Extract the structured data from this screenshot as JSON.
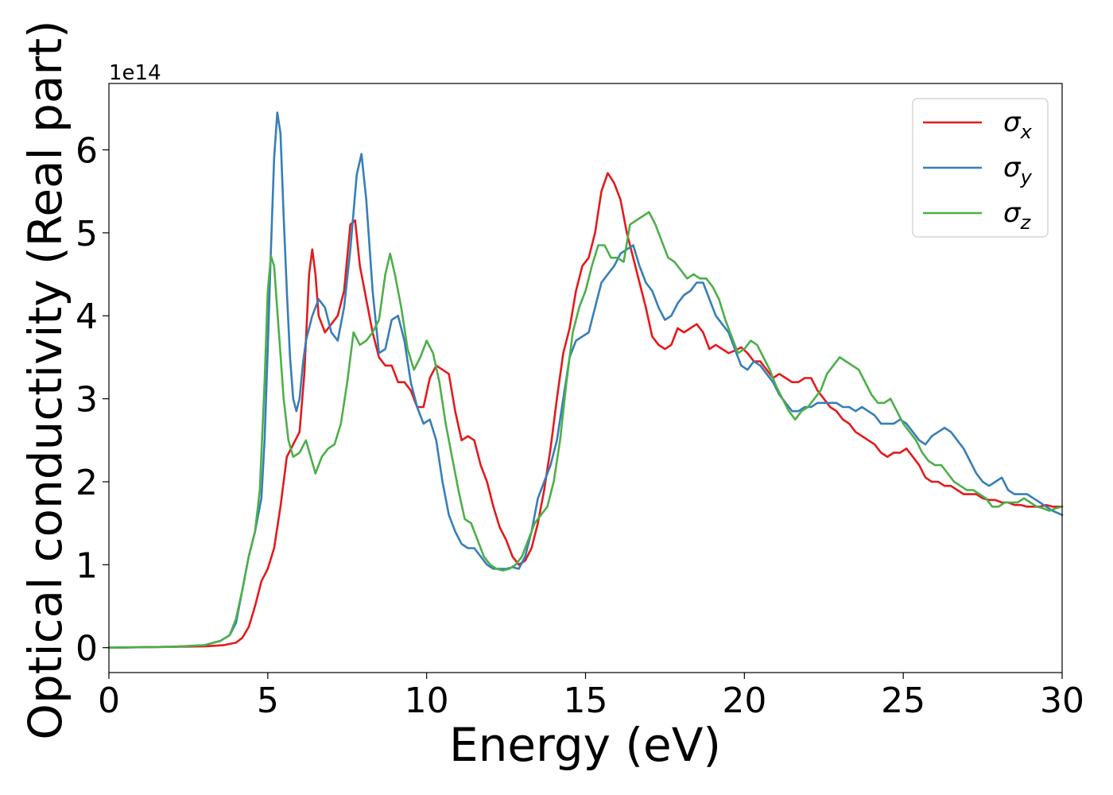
{
  "chart_data": {
    "type": "line",
    "xlabel": "Energy (eV)",
    "ylabel": "Optical conductivity (Real part)",
    "y_offset_label": "1e14",
    "xlim": [
      0,
      30
    ],
    "ylim": [
      -0.3,
      6.8
    ],
    "x_ticks": [
      0,
      5,
      10,
      15,
      20,
      25,
      30
    ],
    "x_tick_labels": [
      "0",
      "5",
      "10",
      "15",
      "20",
      "25",
      "30"
    ],
    "y_ticks": [
      0,
      1,
      2,
      3,
      4,
      5,
      6
    ],
    "y_tick_labels": [
      "0",
      "1",
      "2",
      "3",
      "4",
      "5",
      "6"
    ],
    "grid": false,
    "legend_position": "top-right",
    "series": [
      {
        "name": "σx",
        "legend_symbol": "σ",
        "legend_subscript": "x",
        "color": "#e41a1c",
        "x": [
          0,
          2,
          3,
          3.6,
          4,
          4.2,
          4.4,
          4.6,
          4.8,
          5.0,
          5.2,
          5.4,
          5.6,
          5.8,
          6.0,
          6.15,
          6.3,
          6.4,
          6.5,
          6.6,
          6.8,
          7.0,
          7.2,
          7.4,
          7.6,
          7.75,
          7.9,
          8.1,
          8.3,
          8.5,
          8.7,
          8.9,
          9.1,
          9.3,
          9.5,
          9.7,
          9.9,
          10.1,
          10.3,
          10.5,
          10.7,
          10.9,
          11.1,
          11.3,
          11.5,
          11.7,
          11.9,
          12.1,
          12.3,
          12.5,
          12.7,
          12.9,
          13.1,
          13.3,
          13.5,
          13.7,
          13.9,
          14.1,
          14.3,
          14.5,
          14.7,
          14.9,
          15.1,
          15.3,
          15.5,
          15.7,
          15.9,
          16.1,
          16.3,
          16.5,
          16.7,
          16.9,
          17.1,
          17.3,
          17.5,
          17.7,
          17.9,
          18.1,
          18.3,
          18.5,
          18.7,
          18.9,
          19.1,
          19.3,
          19.5,
          19.7,
          19.9,
          20.1,
          20.3,
          20.5,
          20.7,
          20.9,
          21.1,
          21.3,
          21.5,
          21.7,
          21.9,
          22.1,
          22.3,
          22.5,
          22.7,
          22.9,
          23.1,
          23.3,
          23.5,
          23.7,
          23.9,
          24.1,
          24.3,
          24.5,
          24.7,
          24.9,
          25.1,
          25.3,
          25.5,
          25.7,
          25.9,
          26.1,
          26.3,
          26.5,
          26.7,
          26.9,
          27.1,
          27.3,
          27.5,
          27.7,
          27.9,
          28.1,
          28.3,
          28.5,
          28.7,
          28.9,
          29.1,
          29.3,
          29.5,
          29.7,
          30.0
        ],
        "y": [
          0.0,
          0.01,
          0.015,
          0.03,
          0.06,
          0.12,
          0.25,
          0.5,
          0.8,
          0.95,
          1.2,
          1.7,
          2.3,
          2.45,
          2.6,
          3.3,
          4.5,
          4.8,
          4.5,
          4.0,
          3.8,
          3.9,
          4.0,
          4.3,
          5.1,
          5.15,
          4.6,
          4.2,
          3.8,
          3.5,
          3.4,
          3.4,
          3.2,
          3.2,
          3.1,
          2.9,
          2.9,
          3.25,
          3.4,
          3.35,
          3.3,
          2.85,
          2.5,
          2.55,
          2.5,
          2.2,
          2.0,
          1.7,
          1.45,
          1.3,
          1.1,
          1.0,
          1.05,
          1.2,
          1.5,
          1.9,
          2.4,
          3.0,
          3.55,
          3.85,
          4.3,
          4.6,
          4.7,
          5.0,
          5.5,
          5.72,
          5.6,
          5.4,
          5.0,
          4.7,
          4.4,
          4.1,
          3.75,
          3.65,
          3.6,
          3.65,
          3.85,
          3.8,
          3.85,
          3.9,
          3.8,
          3.6,
          3.65,
          3.6,
          3.55,
          3.58,
          3.62,
          3.55,
          3.45,
          3.45,
          3.35,
          3.25,
          3.3,
          3.25,
          3.2,
          3.2,
          3.25,
          3.25,
          3.1,
          3.0,
          2.9,
          2.85,
          2.75,
          2.7,
          2.6,
          2.55,
          2.5,
          2.45,
          2.35,
          2.3,
          2.35,
          2.35,
          2.4,
          2.3,
          2.2,
          2.05,
          2.0,
          2.0,
          1.95,
          1.95,
          1.9,
          1.85,
          1.85,
          1.85,
          1.8,
          1.78,
          1.78,
          1.75,
          1.75,
          1.72,
          1.72,
          1.7,
          1.7,
          1.7,
          1.72,
          1.7,
          1.7
        ]
      },
      {
        "name": "σy",
        "legend_symbol": "σ",
        "legend_subscript": "y",
        "color": "#377eb8",
        "x": [
          0,
          2,
          3,
          3.5,
          3.8,
          4.0,
          4.2,
          4.4,
          4.6,
          4.8,
          4.9,
          5.0,
          5.1,
          5.2,
          5.3,
          5.4,
          5.5,
          5.6,
          5.7,
          5.8,
          5.9,
          6.0,
          6.1,
          6.2,
          6.4,
          6.6,
          6.8,
          7.0,
          7.2,
          7.4,
          7.6,
          7.8,
          7.95,
          8.1,
          8.3,
          8.5,
          8.7,
          8.9,
          9.1,
          9.3,
          9.5,
          9.7,
          9.9,
          10.1,
          10.3,
          10.5,
          10.7,
          10.9,
          11.1,
          11.3,
          11.5,
          11.7,
          11.9,
          12.1,
          12.3,
          12.5,
          12.7,
          12.9,
          13.1,
          13.3,
          13.5,
          13.7,
          13.9,
          14.1,
          14.3,
          14.5,
          14.7,
          14.9,
          15.1,
          15.3,
          15.5,
          15.7,
          15.9,
          16.1,
          16.3,
          16.5,
          16.7,
          16.9,
          17.1,
          17.3,
          17.5,
          17.7,
          17.9,
          18.1,
          18.3,
          18.5,
          18.7,
          18.9,
          19.1,
          19.3,
          19.5,
          19.7,
          19.9,
          20.1,
          20.3,
          20.5,
          20.7,
          20.9,
          21.1,
          21.3,
          21.5,
          21.7,
          21.9,
          22.1,
          22.3,
          22.5,
          22.7,
          22.9,
          23.1,
          23.3,
          23.5,
          23.7,
          23.9,
          24.1,
          24.3,
          24.5,
          24.7,
          24.9,
          25.1,
          25.3,
          25.5,
          25.7,
          25.9,
          26.1,
          26.3,
          26.5,
          26.7,
          26.9,
          27.1,
          27.3,
          27.5,
          27.7,
          27.9,
          28.1,
          28.3,
          28.5,
          28.7,
          28.9,
          29.1,
          29.3,
          29.5,
          29.7,
          30.0
        ],
        "y": [
          0.0,
          0.01,
          0.03,
          0.08,
          0.15,
          0.3,
          0.7,
          1.1,
          1.4,
          1.8,
          2.5,
          3.6,
          4.8,
          5.9,
          6.45,
          6.2,
          5.2,
          4.3,
          3.5,
          3.0,
          2.85,
          3.0,
          3.4,
          3.7,
          4.0,
          4.2,
          4.1,
          3.8,
          3.7,
          4.1,
          4.8,
          5.7,
          5.95,
          5.4,
          4.3,
          3.55,
          3.6,
          3.95,
          4.0,
          3.7,
          3.2,
          2.9,
          2.7,
          2.75,
          2.5,
          2.0,
          1.6,
          1.4,
          1.25,
          1.2,
          1.2,
          1.1,
          1.0,
          0.95,
          0.95,
          0.95,
          0.97,
          0.95,
          1.1,
          1.4,
          1.8,
          2.0,
          2.2,
          2.5,
          3.0,
          3.5,
          3.7,
          3.75,
          3.8,
          4.1,
          4.4,
          4.5,
          4.6,
          4.75,
          4.8,
          4.85,
          4.6,
          4.4,
          4.3,
          4.1,
          3.95,
          4.0,
          4.15,
          4.25,
          4.3,
          4.4,
          4.4,
          4.2,
          4.0,
          3.9,
          3.8,
          3.6,
          3.4,
          3.35,
          3.45,
          3.4,
          3.3,
          3.2,
          3.05,
          2.95,
          2.85,
          2.85,
          2.9,
          2.9,
          2.95,
          2.95,
          2.95,
          2.95,
          2.9,
          2.9,
          2.85,
          2.9,
          2.85,
          2.8,
          2.7,
          2.7,
          2.7,
          2.75,
          2.7,
          2.6,
          2.5,
          2.45,
          2.55,
          2.6,
          2.65,
          2.6,
          2.5,
          2.4,
          2.25,
          2.1,
          2.0,
          1.95,
          2.0,
          2.05,
          1.9,
          1.85,
          1.85,
          1.85,
          1.8,
          1.75,
          1.7,
          1.65,
          1.6
        ]
      },
      {
        "name": "σz",
        "legend_symbol": "σ",
        "legend_subscript": "z",
        "color": "#4daf4a",
        "x": [
          0,
          2,
          3,
          3.5,
          3.8,
          4.0,
          4.2,
          4.4,
          4.6,
          4.75,
          4.9,
          5.0,
          5.1,
          5.2,
          5.35,
          5.5,
          5.65,
          5.8,
          6.0,
          6.2,
          6.35,
          6.5,
          6.7,
          6.9,
          7.1,
          7.3,
          7.5,
          7.7,
          7.9,
          8.1,
          8.3,
          8.5,
          8.7,
          8.85,
          9.0,
          9.2,
          9.4,
          9.6,
          9.8,
          10.0,
          10.2,
          10.4,
          10.6,
          10.8,
          11.0,
          11.2,
          11.4,
          11.6,
          11.8,
          12.0,
          12.2,
          12.4,
          12.6,
          12.8,
          13.0,
          13.2,
          13.4,
          13.6,
          13.8,
          14.0,
          14.2,
          14.4,
          14.6,
          14.8,
          15.0,
          15.2,
          15.4,
          15.6,
          15.8,
          16.0,
          16.2,
          16.4,
          16.6,
          16.8,
          17.0,
          17.2,
          17.4,
          17.6,
          17.8,
          18.0,
          18.2,
          18.4,
          18.6,
          18.8,
          19.0,
          19.2,
          19.4,
          19.6,
          19.8,
          20.0,
          20.2,
          20.4,
          20.6,
          20.8,
          21.0,
          21.2,
          21.4,
          21.6,
          21.8,
          22.0,
          22.2,
          22.4,
          22.6,
          22.8,
          23.0,
          23.2,
          23.4,
          23.6,
          23.8,
          24.0,
          24.2,
          24.4,
          24.6,
          24.8,
          25.0,
          25.2,
          25.4,
          25.6,
          25.8,
          26.0,
          26.2,
          26.4,
          26.6,
          26.8,
          27.0,
          27.2,
          27.4,
          27.6,
          27.8,
          28.0,
          28.2,
          28.4,
          28.6,
          28.8,
          29.0,
          29.2,
          29.4,
          29.6,
          29.8,
          30.0
        ],
        "y": [
          0.0,
          0.01,
          0.03,
          0.08,
          0.15,
          0.35,
          0.7,
          1.1,
          1.4,
          1.9,
          3.2,
          4.3,
          4.72,
          4.6,
          3.8,
          3.0,
          2.5,
          2.3,
          2.35,
          2.5,
          2.3,
          2.1,
          2.3,
          2.4,
          2.45,
          2.7,
          3.2,
          3.8,
          3.65,
          3.7,
          3.8,
          3.95,
          4.5,
          4.75,
          4.5,
          4.1,
          3.6,
          3.35,
          3.5,
          3.7,
          3.55,
          3.2,
          2.7,
          2.3,
          1.9,
          1.55,
          1.5,
          1.3,
          1.1,
          1.0,
          0.95,
          0.93,
          0.95,
          1.0,
          1.1,
          1.3,
          1.5,
          1.6,
          1.7,
          2.0,
          2.5,
          3.2,
          3.8,
          4.1,
          4.3,
          4.6,
          4.85,
          4.85,
          4.7,
          4.7,
          4.65,
          5.1,
          5.15,
          5.2,
          5.25,
          5.1,
          4.9,
          4.7,
          4.65,
          4.55,
          4.45,
          4.5,
          4.45,
          4.45,
          4.35,
          4.2,
          3.95,
          3.75,
          3.55,
          3.6,
          3.7,
          3.65,
          3.5,
          3.35,
          3.15,
          3.0,
          2.85,
          2.75,
          2.85,
          2.9,
          3.0,
          3.1,
          3.3,
          3.4,
          3.5,
          3.45,
          3.4,
          3.35,
          3.2,
          3.05,
          2.95,
          2.95,
          3.0,
          2.85,
          2.7,
          2.6,
          2.5,
          2.35,
          2.25,
          2.2,
          2.2,
          2.1,
          2.0,
          1.95,
          1.9,
          1.9,
          1.85,
          1.8,
          1.7,
          1.7,
          1.75,
          1.75,
          1.75,
          1.8,
          1.75,
          1.7,
          1.68,
          1.65,
          1.68,
          1.7
        ]
      }
    ]
  }
}
